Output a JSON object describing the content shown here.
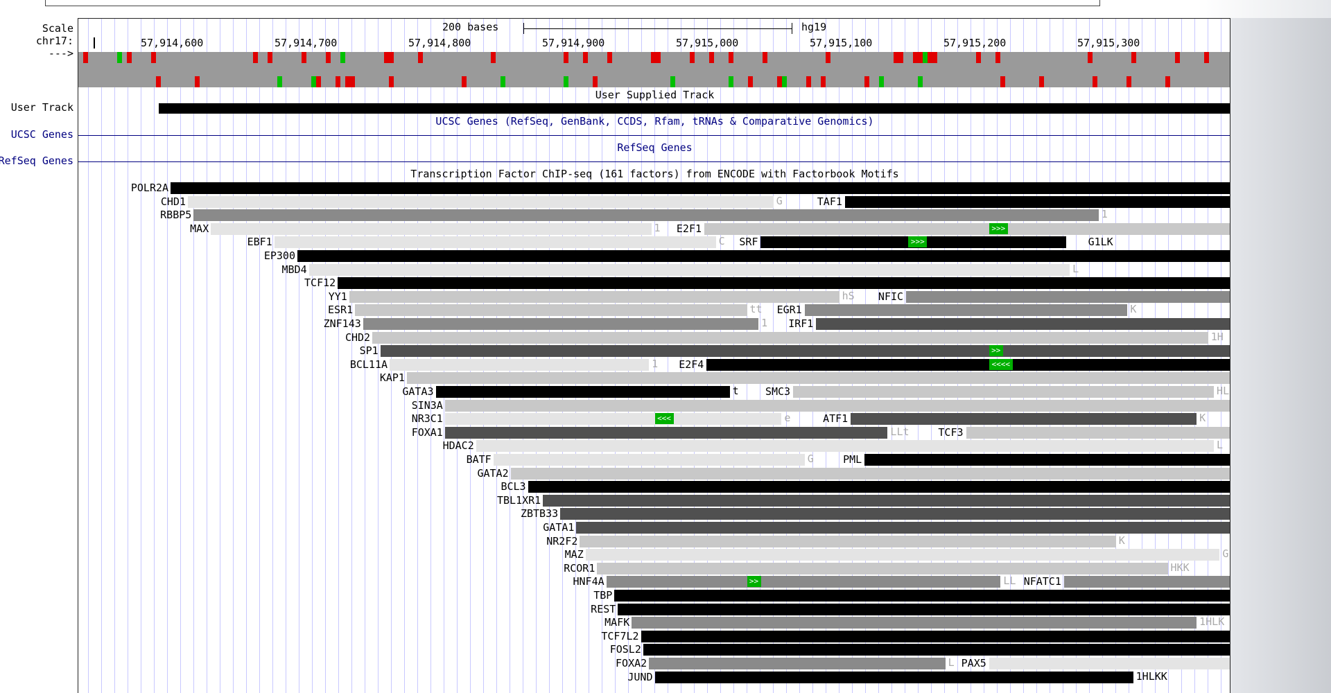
{
  "side_labels": [
    {
      "text": "Scale",
      "blue": false
    },
    {
      "text": "chr17:",
      "blue": false
    },
    {
      "text": "--->",
      "blue": false
    },
    {
      "text": "User Track",
      "blue": false
    },
    {
      "text": "UCSC Genes",
      "blue": true
    },
    {
      "text": "RefSeq Genes",
      "blue": true
    }
  ],
  "scale": {
    "label": "200 bases",
    "assembly": "hg19"
  },
  "ruler_ticks": [
    "57,914,600",
    "57,914,700",
    "57,914,800",
    "57,914,900",
    "57,915,000",
    "57,915,100",
    "57,915,200",
    "57,915,300"
  ],
  "track_titles": {
    "user": "User Supplied Track",
    "ucsc": "UCSC Genes (RefSeq, GenBank, CCDS, Rfam, tRNAs & Comparative Genomics)",
    "refseq": "RefSeq Genes",
    "tfbs": "Transcription Factor ChIP-seq (161 factors) from ENCODE with Factorbook Motifs"
  },
  "colors": {
    "black": "#000000",
    "dark": "#505050",
    "mid": "#8a8a8a",
    "light": "#c8c8c8",
    "pale": "#e4e4e4",
    "motif": "#00b000",
    "seq_red": "#e00000",
    "seq_green": "#00c000",
    "seq_gray": "#9a9a9a",
    "track_blue": "#000080"
  },
  "tf_rows": [
    {
      "label": "POLR2A",
      "bands": [
        {
          "from": 0.08,
          "to": 1.0,
          "shade": "black"
        }
      ]
    },
    {
      "label": "CHD1",
      "bands": [
        {
          "from": 0.095,
          "to": 0.603,
          "shade": "pale",
          "tail": "G"
        },
        {
          "from": 0.665,
          "to": 1.0,
          "shade": "black",
          "label": "TAF1"
        }
      ]
    },
    {
      "label": "RBBP5",
      "bands": [
        {
          "from": 0.1,
          "to": 0.885,
          "shade": "mid",
          "tail": "1"
        }
      ]
    },
    {
      "label": "MAX",
      "bands": [
        {
          "from": 0.115,
          "to": 0.497,
          "shade": "pale",
          "tail": "1"
        },
        {
          "from": 0.543,
          "to": 1.0,
          "shade": "light",
          "label": "E2F1",
          "motif": {
            "at": 0.79,
            "text": ">>>"
          }
        }
      ]
    },
    {
      "label": "EBF1",
      "bands": [
        {
          "from": 0.17,
          "to": 0.553,
          "shade": "pale",
          "tail": "C"
        },
        {
          "from": 0.592,
          "to": 0.857,
          "shade": "black",
          "label": "SRF",
          "motif": {
            "at": 0.72,
            "text": ">>>"
          }
        },
        {
          "from": 0.9,
          "to": 0.9,
          "shade": "none",
          "label": "G1LK"
        }
      ]
    },
    {
      "label": "EP300",
      "bands": [
        {
          "from": 0.19,
          "to": 1.0,
          "shade": "black"
        }
      ]
    },
    {
      "label": "MBD4",
      "bands": [
        {
          "from": 0.2,
          "to": 0.86,
          "shade": "pale",
          "tail": "L"
        }
      ]
    },
    {
      "label": "TCF12",
      "bands": [
        {
          "from": 0.225,
          "to": 1.0,
          "shade": "black"
        }
      ]
    },
    {
      "label": "YY1",
      "bands": [
        {
          "from": 0.235,
          "to": 0.66,
          "shade": "light",
          "tail": "hS"
        },
        {
          "from": 0.718,
          "to": 1.0,
          "shade": "mid",
          "label": "NFIC"
        }
      ]
    },
    {
      "label": "ESR1",
      "bands": [
        {
          "from": 0.24,
          "to": 0.58,
          "shade": "light",
          "tail": "tt"
        },
        {
          "from": 0.63,
          "to": 0.91,
          "shade": "mid",
          "label": "EGR1",
          "tail": "K"
        }
      ]
    },
    {
      "label": "ZNF143",
      "bands": [
        {
          "from": 0.247,
          "to": 0.59,
          "shade": "mid",
          "tail": "1"
        },
        {
          "from": 0.64,
          "to": 1.0,
          "shade": "dark",
          "label": "IRF1"
        }
      ]
    },
    {
      "label": "CHD2",
      "bands": [
        {
          "from": 0.255,
          "to": 0.98,
          "shade": "light",
          "tail": "1H"
        }
      ]
    },
    {
      "label": "SP1",
      "bands": [
        {
          "from": 0.262,
          "to": 1.0,
          "shade": "dark",
          "motif": {
            "at": 0.79,
            "text": ">>"
          }
        }
      ]
    },
    {
      "label": "BCL11A",
      "bands": [
        {
          "from": 0.27,
          "to": 0.495,
          "shade": "pale",
          "tail": "1"
        },
        {
          "from": 0.545,
          "to": 1.0,
          "shade": "black",
          "label": "E2F4",
          "motif": {
            "at": 0.79,
            "text": "<<<<"
          }
        }
      ]
    },
    {
      "label": "KAP1",
      "bands": [
        {
          "from": 0.285,
          "to": 1.0,
          "shade": "light"
        }
      ]
    },
    {
      "label": "GATA3",
      "bands": [
        {
          "from": 0.31,
          "to": 0.565,
          "shade": "black",
          "tail": "t"
        },
        {
          "from": 0.62,
          "to": 0.985,
          "shade": "light",
          "label": "SMC3",
          "tail": "HL"
        }
      ]
    },
    {
      "label": "SIN3A",
      "bands": [
        {
          "from": 0.318,
          "to": 1.0,
          "shade": "light"
        }
      ]
    },
    {
      "label": "NR3C1",
      "bands": [
        {
          "from": 0.318,
          "to": 0.61,
          "shade": "pale",
          "tail": "e",
          "motif": {
            "at": 0.5,
            "text": "<<<"
          }
        },
        {
          "from": 0.67,
          "to": 0.97,
          "shade": "dark",
          "label": "ATF1",
          "tail": "K"
        }
      ]
    },
    {
      "label": "FOXA1",
      "bands": [
        {
          "from": 0.318,
          "to": 0.702,
          "shade": "dark",
          "tail": "LLt"
        },
        {
          "from": 0.77,
          "to": 1.0,
          "shade": "light",
          "label": "TCF3"
        }
      ]
    },
    {
      "label": "HDAC2",
      "bands": [
        {
          "from": 0.345,
          "to": 0.985,
          "shade": "pale",
          "tail": "L"
        }
      ]
    },
    {
      "label": "BATF",
      "bands": [
        {
          "from": 0.36,
          "to": 0.63,
          "shade": "pale",
          "tail": "G"
        },
        {
          "from": 0.682,
          "to": 1.0,
          "shade": "black",
          "label": "PML"
        }
      ]
    },
    {
      "label": "GATA2",
      "bands": [
        {
          "from": 0.375,
          "to": 1.0,
          "shade": "light"
        }
      ]
    },
    {
      "label": "BCL3",
      "bands": [
        {
          "from": 0.39,
          "to": 1.0,
          "shade": "black"
        }
      ]
    },
    {
      "label": "TBL1XR1",
      "bands": [
        {
          "from": 0.403,
          "to": 1.0,
          "shade": "dark"
        }
      ]
    },
    {
      "label": "ZBTB33",
      "bands": [
        {
          "from": 0.418,
          "to": 1.0,
          "shade": "dark"
        }
      ]
    },
    {
      "label": "GATA1",
      "bands": [
        {
          "from": 0.432,
          "to": 1.0,
          "shade": "dark"
        }
      ]
    },
    {
      "label": "NR2F2",
      "bands": [
        {
          "from": 0.435,
          "to": 0.9,
          "shade": "light",
          "tail": "K"
        }
      ]
    },
    {
      "label": "MAZ",
      "bands": [
        {
          "from": 0.44,
          "to": 0.99,
          "shade": "pale",
          "tail": "G"
        }
      ]
    },
    {
      "label": "RCOR1",
      "bands": [
        {
          "from": 0.45,
          "to": 0.945,
          "shade": "light",
          "tail": "HKK"
        }
      ]
    },
    {
      "label": "HNF4A",
      "bands": [
        {
          "from": 0.458,
          "to": 0.8,
          "shade": "mid",
          "tail": "LL",
          "motif": {
            "at": 0.58,
            "text": ">>"
          }
        },
        {
          "from": 0.855,
          "to": 1.0,
          "shade": "mid",
          "label": "NFATC1"
        }
      ]
    },
    {
      "label": "TBP",
      "bands": [
        {
          "from": 0.465,
          "to": 1.0,
          "shade": "black"
        }
      ]
    },
    {
      "label": "REST",
      "bands": [
        {
          "from": 0.468,
          "to": 1.0,
          "shade": "black"
        }
      ]
    },
    {
      "label": "MAFK",
      "bands": [
        {
          "from": 0.48,
          "to": 0.97,
          "shade": "mid",
          "tail": "1HLK"
        }
      ]
    },
    {
      "label": "TCF7L2",
      "bands": [
        {
          "from": 0.488,
          "to": 1.0,
          "shade": "black"
        }
      ]
    },
    {
      "label": "FOSL2",
      "bands": [
        {
          "from": 0.49,
          "to": 1.0,
          "shade": "black"
        }
      ]
    },
    {
      "label": "FOXA2",
      "bands": [
        {
          "from": 0.495,
          "to": 0.752,
          "shade": "mid",
          "tail": "L"
        },
        {
          "from": 0.79,
          "to": 1.0,
          "shade": "pale",
          "label": "PAX5"
        }
      ]
    },
    {
      "label": "JUND",
      "bands": [
        {
          "from": 0.5,
          "to": 0.915,
          "shade": "black",
          "tail": "1HLKK"
        }
      ]
    }
  ]
}
